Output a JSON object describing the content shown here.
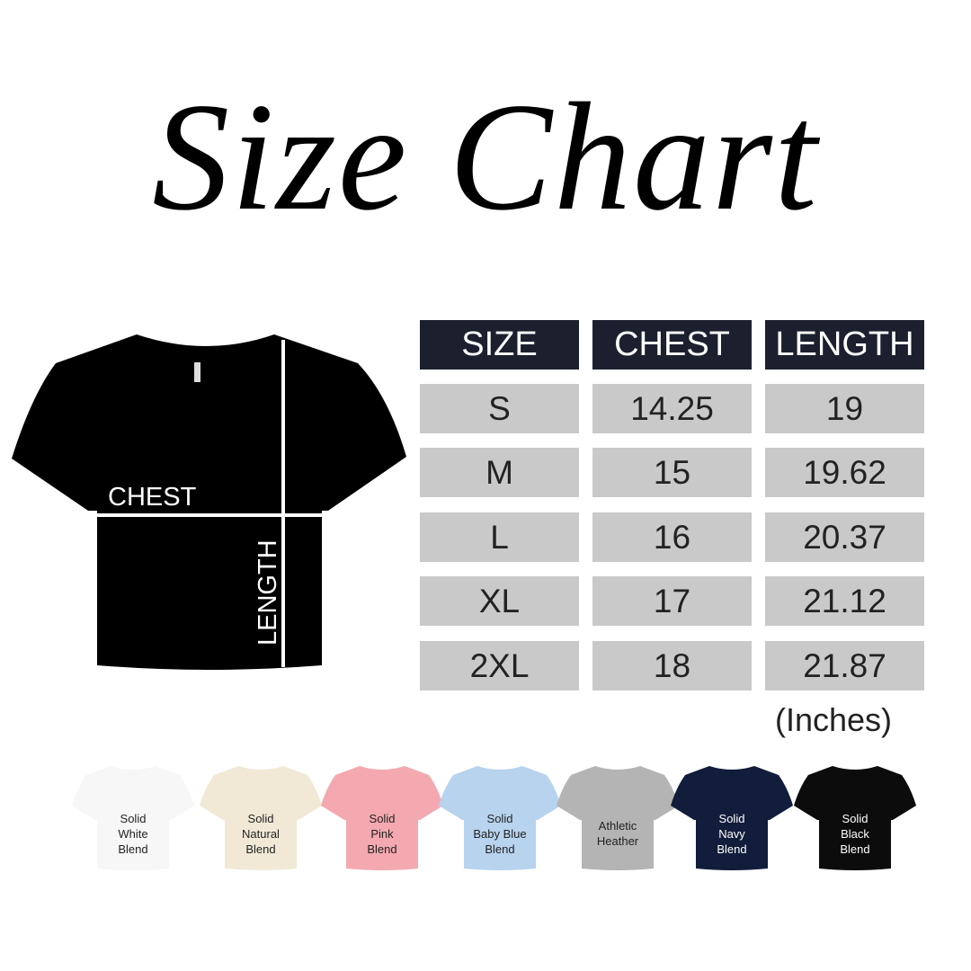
{
  "title": "Size Chart",
  "diagram": {
    "chest_label": "CHEST",
    "length_label": "LENGTH",
    "shirt_color": "#000000"
  },
  "table": {
    "headers": [
      "SIZE",
      "CHEST",
      "LENGTH"
    ],
    "rows": [
      [
        "S",
        "14.25",
        "19"
      ],
      [
        "M",
        "15",
        "19.62"
      ],
      [
        "L",
        "16",
        "20.37"
      ],
      [
        "XL",
        "17",
        "21.12"
      ],
      [
        "2XL",
        "18",
        "21.87"
      ]
    ],
    "units": "(Inches)",
    "header_color": "#1c1f2e",
    "row_color": "#c9c9c9"
  },
  "colors": [
    {
      "lines": [
        "Solid",
        "White",
        "Blend"
      ],
      "hex": "#f7f7f7",
      "text": "#222222"
    },
    {
      "lines": [
        "Solid",
        "Natural",
        "Blend"
      ],
      "hex": "#f1e9d6",
      "text": "#222222"
    },
    {
      "lines": [
        "Solid",
        "Pink",
        "Blend"
      ],
      "hex": "#f4a9b0",
      "text": "#222222"
    },
    {
      "lines": [
        "Solid",
        "Baby Blue",
        "Blend"
      ],
      "hex": "#b7d3ee",
      "text": "#222222"
    },
    {
      "lines": [
        "Athletic",
        "Heather"
      ],
      "hex": "#b4b4b4",
      "text": "#222222"
    },
    {
      "lines": [
        "Solid",
        "Navy",
        "Blend"
      ],
      "hex": "#121d3b",
      "text": "#ffffff"
    },
    {
      "lines": [
        "Solid",
        "Black",
        "Blend"
      ],
      "hex": "#0c0c0c",
      "text": "#ffffff"
    }
  ]
}
